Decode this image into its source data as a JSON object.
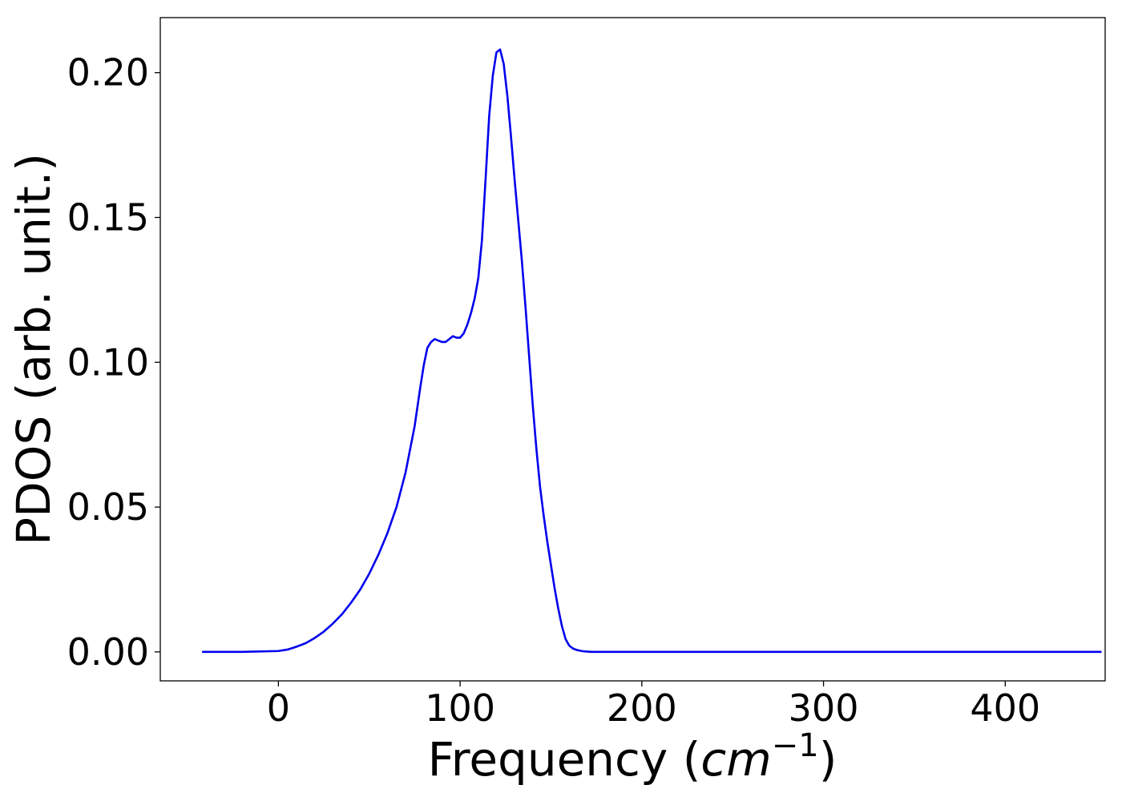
{
  "chart_data": {
    "type": "line",
    "title": "",
    "xlabel": "Frequency (",
    "xlabel_math": "cm",
    "xlabel_sup": "−1",
    "xlabel_close": ")",
    "ylabel": "PDOS (arb. unit.)",
    "xlim": [
      -65,
      455
    ],
    "ylim": [
      -0.01,
      0.219
    ],
    "xticks": [
      {
        "value": 0,
        "label": "0"
      },
      {
        "value": 100,
        "label": "100"
      },
      {
        "value": 200,
        "label": "200"
      },
      {
        "value": 300,
        "label": "300"
      },
      {
        "value": 400,
        "label": "400"
      }
    ],
    "yticks": [
      {
        "value": 0.0,
        "label": "0.00"
      },
      {
        "value": 0.05,
        "label": "0.05"
      },
      {
        "value": 0.1,
        "label": "0.10"
      },
      {
        "value": 0.15,
        "label": "0.15"
      },
      {
        "value": 0.2,
        "label": "0.20"
      }
    ],
    "grid": false,
    "series": [
      {
        "color": "#0000ee",
        "x": [
          -42,
          -20,
          0,
          5,
          10,
          15,
          20,
          25,
          30,
          35,
          40,
          45,
          50,
          55,
          60,
          65,
          70,
          75,
          78,
          80,
          82,
          84,
          86,
          88,
          90,
          92,
          94,
          96,
          98,
          100,
          102,
          104,
          106,
          108,
          110,
          112,
          114,
          116,
          118,
          120,
          122,
          124,
          126,
          128,
          130,
          132,
          134,
          136,
          138,
          140,
          142,
          144,
          146,
          148,
          150,
          152,
          154,
          156,
          158,
          160,
          162,
          164,
          166,
          168,
          170,
          172,
          174,
          176,
          178,
          180,
          182,
          185,
          190,
          200,
          220,
          240,
          260,
          264,
          266,
          268,
          270,
          272,
          274,
          276,
          278,
          280,
          282,
          284,
          286,
          288,
          290,
          292,
          294,
          296,
          298,
          300,
          302,
          304,
          306,
          308,
          310,
          312,
          314,
          316,
          320,
          325,
          330,
          335,
          340,
          345,
          348,
          350,
          352,
          354,
          356,
          358,
          360,
          362,
          364,
          366,
          368,
          370,
          372,
          374,
          376,
          378,
          380,
          385,
          390,
          395,
          400,
          405,
          410,
          414,
          418,
          422,
          430,
          440,
          453
        ],
        "y": [
          0.0,
          0.0,
          0.0003,
          0.0008,
          0.0018,
          0.003,
          0.0048,
          0.007,
          0.0098,
          0.013,
          0.017,
          0.0215,
          0.027,
          0.0335,
          0.041,
          0.05,
          0.062,
          0.078,
          0.091,
          0.099,
          0.105,
          0.107,
          0.108,
          0.1075,
          0.107,
          0.107,
          0.108,
          0.109,
          0.1085,
          0.1085,
          0.11,
          0.113,
          0.117,
          0.122,
          0.129,
          0.142,
          0.163,
          0.185,
          0.199,
          0.207,
          0.208,
          0.203,
          0.192,
          0.178,
          0.163,
          0.149,
          0.135,
          0.119,
          0.102,
          0.085,
          0.07,
          0.057,
          0.047,
          0.038,
          0.03,
          0.022,
          0.015,
          0.009,
          0.0045,
          0.0022,
          0.0012,
          0.0007,
          0.0004,
          0.0002,
          0.0001,
          0.0,
          0.0,
          0.0,
          0.0,
          0.0,
          0.0,
          0.0,
          0.0,
          0.0,
          0.0,
          0.0,
          0.0,
          0.0,
          0.0,
          0.0,
          0.0,
          0.0,
          0.0,
          0.0,
          0.0,
          0.0,
          0.0,
          0.0,
          0.0,
          0.0,
          0.0,
          0.0,
          0.0,
          0.0,
          0.0,
          0.0,
          0.0,
          0.0,
          0.0,
          0.0,
          0.0,
          0.0,
          0.0,
          0.0,
          0.0,
          0.0,
          0.0,
          0.0,
          0.0,
          0.0,
          0.0,
          0.0,
          0.0,
          0.0,
          0.0,
          0.0,
          0.0,
          0.0,
          0.0,
          0.0,
          0.0,
          0.0,
          0.0,
          0.0,
          0.0,
          0.0,
          0.0,
          0.0,
          0.0,
          0.0,
          0.0,
          0.0,
          0.0,
          0.0,
          0.0,
          0.0,
          0.0,
          0.0,
          0.0
        ]
      }
    ]
  }
}
